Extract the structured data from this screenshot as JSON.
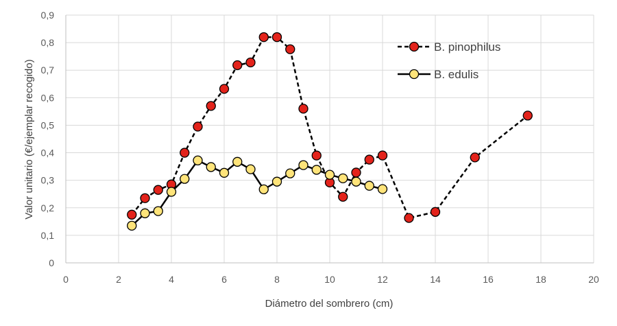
{
  "chart_data": {
    "type": "line",
    "title": "",
    "xlabel": "Diámetro del sombrero (cm)",
    "ylabel": "Valor unitario (€/ejemplar recogido)",
    "xlim": [
      0,
      20
    ],
    "ylim": [
      0,
      0.9
    ],
    "x_ticks": [
      0,
      2,
      4,
      6,
      8,
      10,
      12,
      14,
      16,
      18,
      20
    ],
    "x_tick_labels": [
      "0",
      "2",
      "4",
      "6",
      "8",
      "10",
      "12",
      "14",
      "16",
      "18",
      "20"
    ],
    "y_ticks": [
      0,
      0.1,
      0.2,
      0.3,
      0.4,
      0.5,
      0.6,
      0.7,
      0.8,
      0.9
    ],
    "y_tick_labels": [
      "0",
      "0,1",
      "0,2",
      "0,3",
      "0,4",
      "0,5",
      "0,6",
      "0,7",
      "0,8",
      "0,9"
    ],
    "grid": true,
    "legend_position": "top-right",
    "series": [
      {
        "name": "B. pinophilus",
        "line_style": "dashed",
        "marker_color": "#e3231b",
        "line_color": "#000000",
        "x": [
          2.5,
          3,
          3.5,
          4,
          4.5,
          5,
          5.5,
          6,
          6.5,
          7,
          7.5,
          8,
          8.5,
          9,
          9.5,
          10,
          10.5,
          11,
          11.5,
          12,
          13,
          14,
          15.5,
          17.5
        ],
        "y": [
          0.175,
          0.235,
          0.265,
          0.285,
          0.4,
          0.495,
          0.57,
          0.632,
          0.718,
          0.728,
          0.82,
          0.82,
          0.776,
          0.56,
          0.39,
          0.292,
          0.24,
          0.328,
          0.375,
          0.39,
          0.163,
          0.185,
          0.383,
          0.535
        ]
      },
      {
        "name": "B. edulis",
        "line_style": "solid",
        "marker_color": "#ffe47a",
        "line_color": "#000000",
        "x": [
          2.5,
          3,
          3.5,
          4,
          4.5,
          5,
          5.5,
          6,
          6.5,
          7,
          7.5,
          8,
          8.5,
          9,
          9.5,
          10,
          10.5,
          11,
          11.5,
          12
        ],
        "y": [
          0.135,
          0.18,
          0.188,
          0.258,
          0.305,
          0.372,
          0.348,
          0.327,
          0.367,
          0.34,
          0.267,
          0.295,
          0.325,
          0.355,
          0.338,
          0.32,
          0.307,
          0.295,
          0.28,
          0.268
        ]
      }
    ]
  }
}
